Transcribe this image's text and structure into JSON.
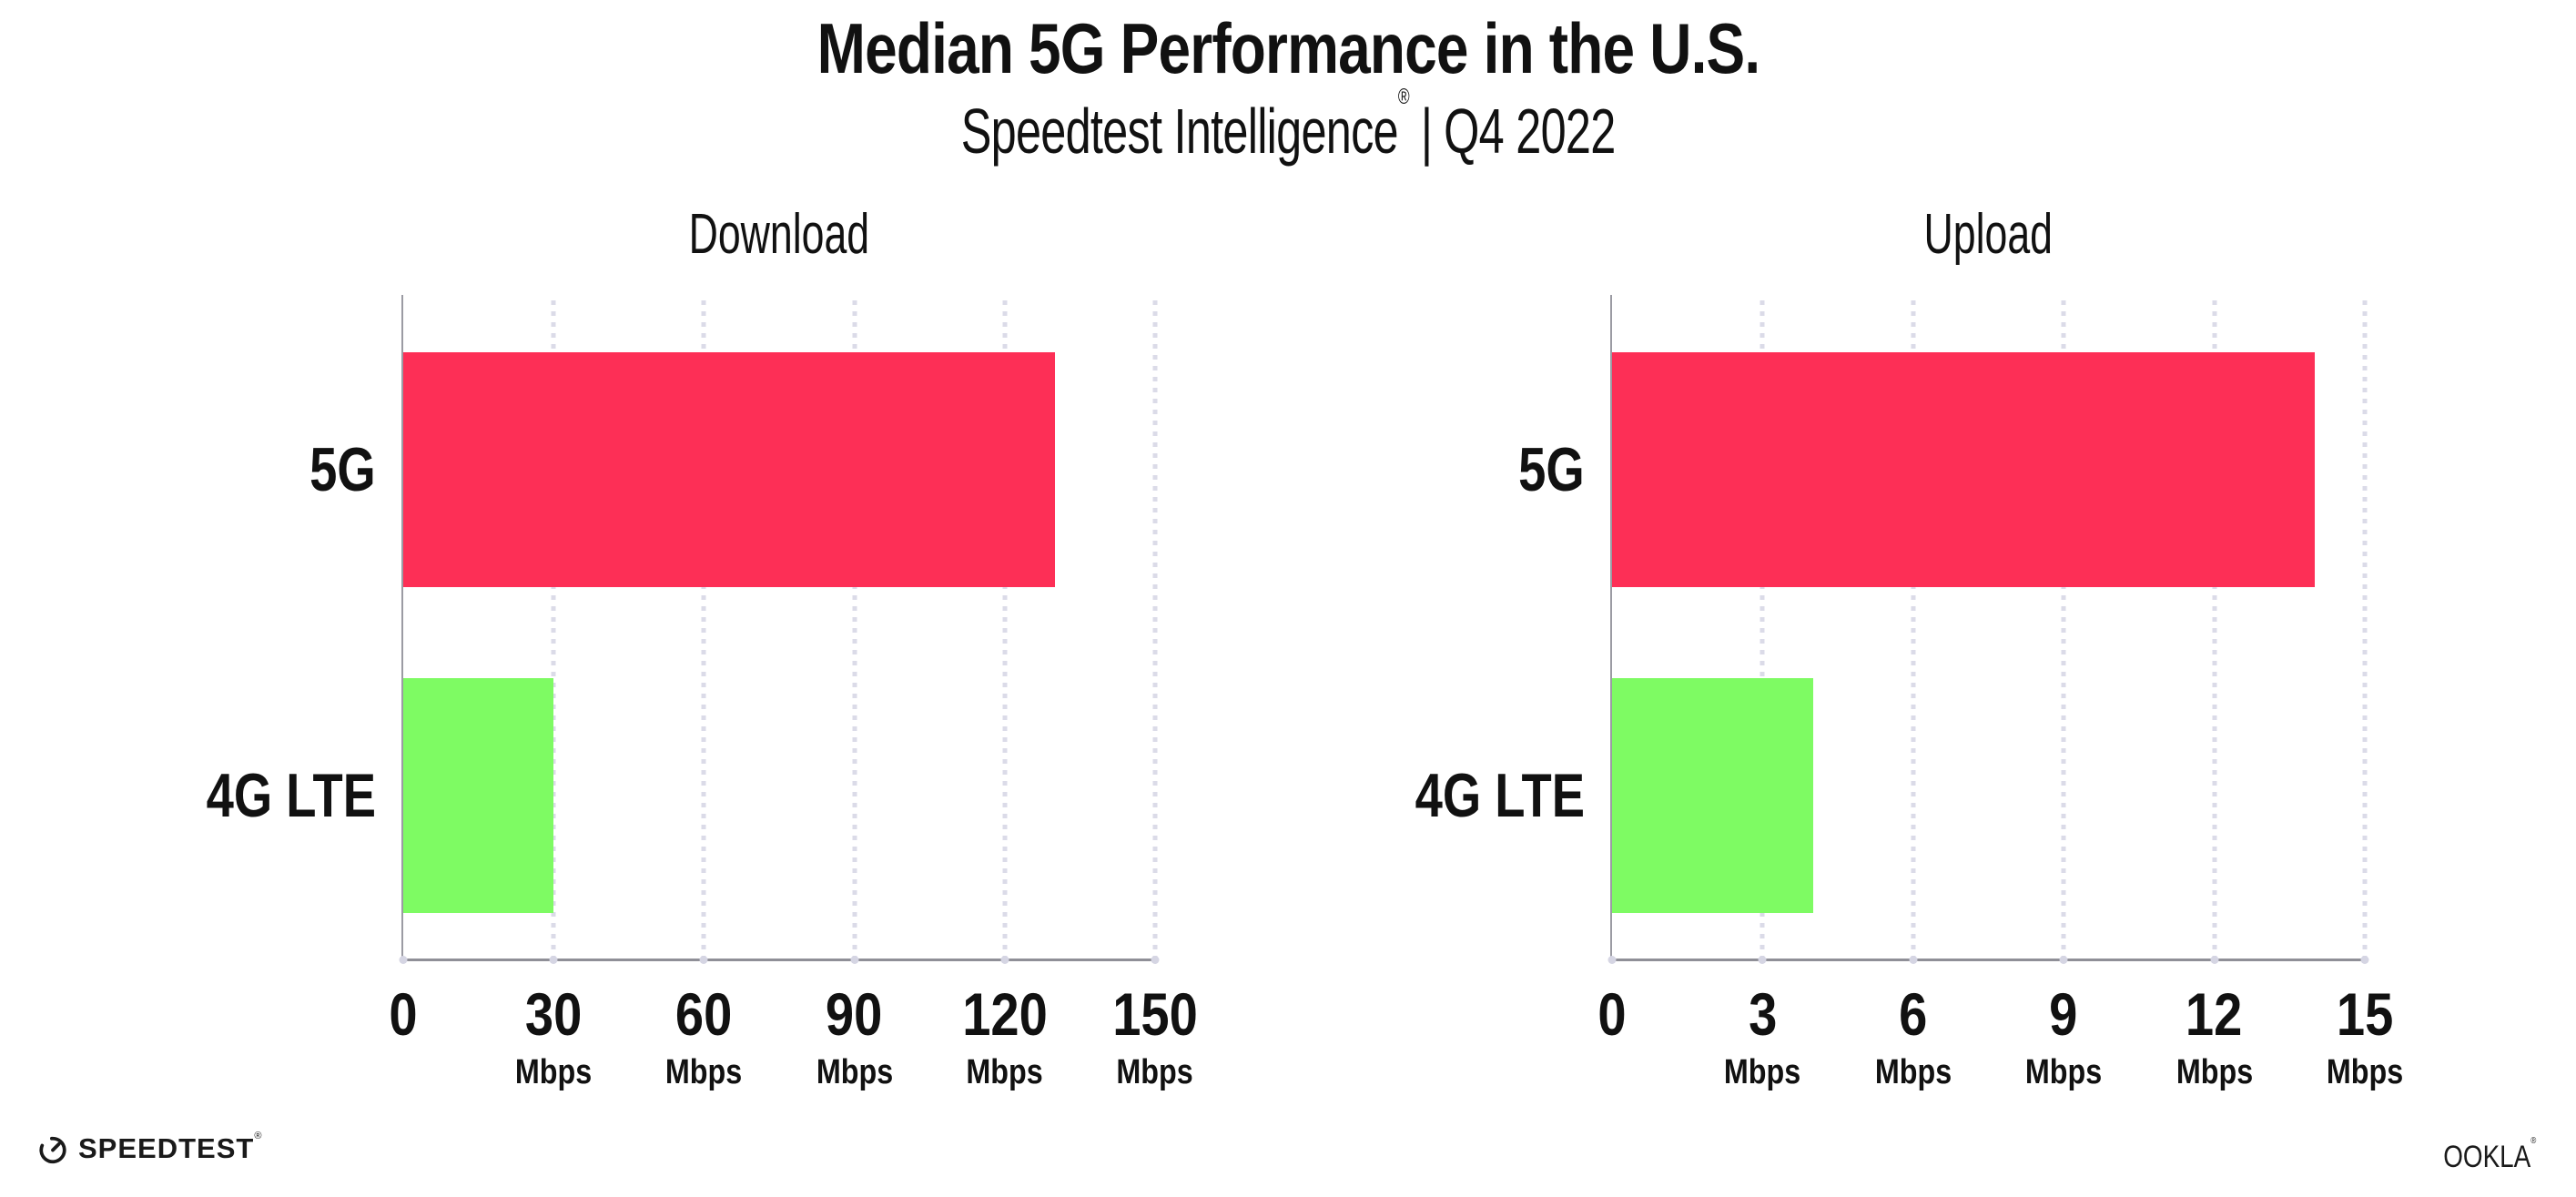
{
  "header": {
    "title": "Median 5G Performance in the U.S.",
    "subtitle_brand": "Speedtest Intelligence",
    "subtitle_mark": "®",
    "subtitle_separator": "|",
    "subtitle_period": "Q4 2022"
  },
  "colors": {
    "bar_5g": "#FD2F56",
    "bar_4g_lte": "#7EFB63",
    "axis": "#8F8F97",
    "grid_dot": "#DBDBE8",
    "text": "#111111"
  },
  "chart_data": [
    {
      "type": "bar",
      "orientation": "horizontal",
      "title": "Download",
      "categories": [
        "5G",
        "4G LTE"
      ],
      "values": [
        130,
        30
      ],
      "unit": "Mbps",
      "xlim": [
        0,
        150
      ],
      "xticks": [
        0,
        30,
        60,
        90,
        120,
        150
      ],
      "xtick_labels": [
        "0",
        "30",
        "60",
        "90",
        "120",
        "150"
      ],
      "xtick_unit": "Mbps",
      "grid": "dotted-vertical",
      "legend": "none",
      "bar_colors": [
        "#FD2F56",
        "#7EFB63"
      ]
    },
    {
      "type": "bar",
      "orientation": "horizontal",
      "title": "Upload",
      "categories": [
        "5G",
        "4G LTE"
      ],
      "values": [
        14,
        4
      ],
      "unit": "Mbps",
      "xlim": [
        0,
        15
      ],
      "xticks": [
        0,
        3,
        6,
        9,
        12,
        15
      ],
      "xtick_labels": [
        "0",
        "3",
        "6",
        "9",
        "12",
        "15"
      ],
      "xtick_unit": "Mbps",
      "grid": "dotted-vertical",
      "legend": "none",
      "bar_colors": [
        "#FD2F56",
        "#7EFB63"
      ]
    }
  ],
  "footer": {
    "speedtest_label": "SPEEDTEST",
    "speedtest_mark": "®",
    "ookla_label": "OOKLA",
    "ookla_mark": "®"
  }
}
